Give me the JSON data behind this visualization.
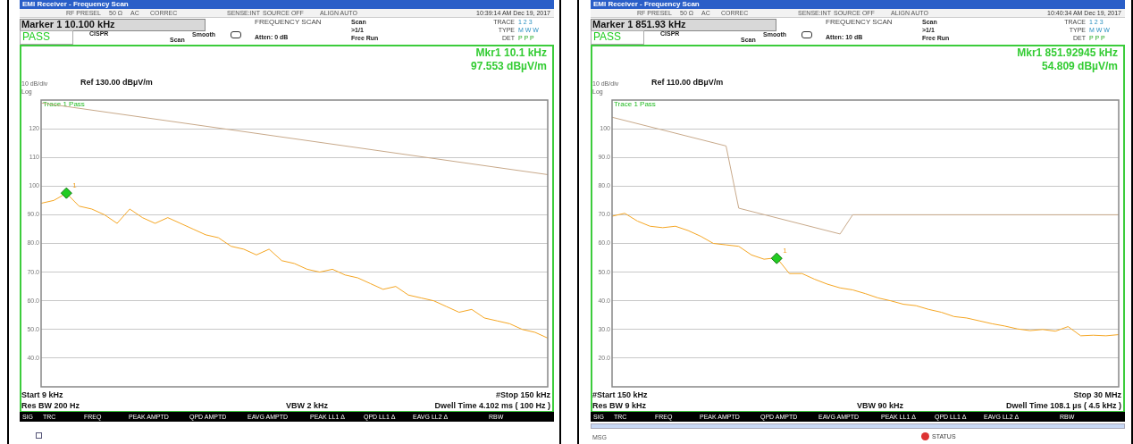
{
  "chart_data": [
    {
      "type": "line",
      "grid": "y",
      "tick_labels": "y",
      "marker": "none",
      "categories": [
        null,
        null,
        null,
        null,
        null,
        null,
        null,
        null,
        null,
        null,
        null,
        null,
        null,
        null,
        null,
        null,
        null,
        null,
        null,
        null,
        null,
        null,
        null,
        null,
        null,
        null,
        null,
        null,
        null,
        null,
        null,
        null,
        null,
        null,
        null,
        null,
        null,
        null,
        null,
        null,
        null
      ],
      "ylim": [
        30,
        130
      ],
      "yticks": [
        {
          "value": 40,
          "label": "40.0"
        },
        {
          "value": 50,
          "label": "50.0"
        },
        {
          "value": 60,
          "label": "60.0"
        },
        {
          "value": 70,
          "label": "70.0"
        },
        {
          "value": 80,
          "label": "80.0"
        },
        {
          "value": 90,
          "label": "90.0"
        },
        100,
        110,
        120
      ],
      "series": [
        {
          "type": "line",
          "color": "#c8a98a",
          "values": [
            129,
            null,
            null,
            null,
            null,
            null,
            null,
            null,
            null,
            null,
            null,
            null,
            null,
            null,
            null,
            null,
            null,
            null,
            null,
            null,
            null,
            null,
            null,
            null,
            null,
            null,
            null,
            null,
            null,
            null,
            null,
            null,
            null,
            null,
            null,
            null,
            null,
            null,
            null,
            null,
            104
          ]
        },
        {
          "type": "line",
          "color": "#f5a623",
          "values": [
            94,
            95,
            97.5,
            93,
            92,
            90,
            87,
            92,
            89,
            87,
            89,
            87,
            85,
            83,
            82,
            79,
            78,
            76,
            78,
            74,
            73,
            71,
            70,
            71,
            69,
            68,
            66,
            64,
            65,
            62,
            61,
            60,
            58,
            56,
            57,
            54,
            53,
            52,
            50,
            49,
            47
          ]
        },
        {
          "type": "scatter",
          "marker": "diamond",
          "color": "#22cc22",
          "values": [
            null,
            null,
            97.553,
            null,
            null,
            null,
            null,
            null,
            null,
            null,
            null,
            null,
            null,
            null,
            null,
            null,
            null,
            null,
            null,
            null,
            null,
            null,
            null,
            null,
            null,
            null,
            null,
            null,
            null,
            null,
            null,
            null,
            null,
            null,
            null,
            null,
            null,
            null,
            null,
            null,
            null
          ]
        }
      ],
      "annotations": [
        "EMI Receiver - Frequency Scan",
        "RF PRESEL",
        "50 Ω",
        "AC",
        "CORREC",
        "SENSE:INT",
        "SOURCE OFF",
        "ALIGN AUTO",
        "10:39:14 AM Dec 19, 2017",
        "Marker 1 10.100 kHz",
        "PASS",
        "CISPR",
        "Scan",
        "Smooth",
        "FREQUENCY SCAN",
        "Atten: 0 dB",
        "Scan",
        ">1/1",
        "Free Run",
        "TRACE",
        "TYPE",
        "DET",
        "Mkr1  10.1 kHz",
        "97.553 dBµV/m",
        "10 dB/div",
        "Ref 130.00 dBµV/m",
        "Log",
        "Trace 1 Pass",
        "Start 9 kHz",
        "#Stop 150 kHz",
        "Res BW 200 Hz",
        "VBW 2 kHz",
        "Dwell Time 4.102 ms ( 100 Hz )",
        "SIG",
        "TRC",
        "FREQ",
        "PEAK AMPTD",
        "QPD AMPTD",
        "EAVG AMPTD",
        "PEAK LL1 Δ",
        "QPD LL1 Δ",
        "EAVG LL2 Δ",
        "RBW",
        "1 2 3",
        "M W W",
        "P P P",
        {
          "text": "1",
          "y": 97.553
        }
      ]
    },
    {
      "type": "line",
      "grid": "y",
      "tick_labels": "y",
      "marker": "none",
      "categories": [
        null,
        null,
        null,
        null,
        null,
        null,
        null,
        null,
        null,
        null,
        null,
        null,
        null,
        null,
        null,
        null,
        null,
        null,
        null,
        null,
        null,
        null,
        null,
        null,
        null,
        null,
        null,
        null,
        null,
        null,
        null,
        null,
        null,
        null,
        null,
        null,
        null,
        null,
        null,
        null,
        null
      ],
      "ylim": [
        10,
        110
      ],
      "yticks": [
        {
          "value": 20,
          "label": "20.0"
        },
        {
          "value": 30,
          "label": "30.0"
        },
        {
          "value": 40,
          "label": "40.0"
        },
        {
          "value": 50,
          "label": "50.0"
        },
        {
          "value": 60,
          "label": "60.0"
        },
        {
          "value": 70,
          "label": "70.0"
        },
        {
          "value": 80,
          "label": "80.0"
        },
        {
          "value": 90,
          "label": "90.0"
        },
        100
      ],
      "series": [
        {
          "type": "line",
          "color": "#c8a98a",
          "values": [
            104,
            null,
            null,
            null,
            null,
            null,
            null,
            null,
            null,
            94,
            72.3,
            null,
            null,
            null,
            null,
            null,
            null,
            null,
            63.3,
            70,
            null,
            null,
            null,
            null,
            null,
            null,
            null,
            null,
            null,
            null,
            null,
            null,
            null,
            null,
            null,
            null,
            null,
            null,
            null,
            null,
            70
          ]
        },
        {
          "type": "line",
          "color": "#f5a623",
          "values": [
            69.5,
            70.5,
            67.8,
            66,
            65.5,
            66,
            64.5,
            62.5,
            60,
            59.5,
            59,
            56,
            54.5,
            55,
            49.5,
            49.5,
            47.5,
            45.8,
            44.5,
            43.8,
            42.5,
            41,
            40,
            38.8,
            38.3,
            37,
            36,
            34.5,
            34,
            33,
            32,
            31.2,
            30.2,
            29.6,
            30,
            29.4,
            31,
            27.8,
            28,
            27.8,
            28.2
          ]
        },
        {
          "type": "scatter",
          "marker": "diamond",
          "color": "#22cc22",
          "values": [
            null,
            null,
            null,
            null,
            null,
            null,
            null,
            null,
            null,
            null,
            null,
            null,
            null,
            54.809,
            null,
            null,
            null,
            null,
            null,
            null,
            null,
            null,
            null,
            null,
            null,
            null,
            null,
            null,
            null,
            null,
            null,
            null,
            null,
            null,
            null,
            null,
            null,
            null,
            null,
            null,
            null
          ]
        }
      ],
      "annotations": [
        "EMI Receiver - Frequency Scan",
        "RF PRESEL",
        "50 Ω",
        "AC",
        "CORREC",
        "SENSE:INT",
        "SOURCE OFF",
        "ALIGN AUTO",
        "10:40:34 AM Dec 19, 2017",
        "Marker 1 851.93 kHz",
        "PASS",
        "CISPR",
        "Scan",
        "Smooth",
        "FREQUENCY SCAN",
        "Atten: 10 dB",
        "Scan",
        ">1/1",
        "Free Run",
        "TRACE",
        "TYPE",
        "DET",
        "Mkr1  851.92945 kHz",
        "54.809 dBµV/m",
        "10 dB/div",
        "Ref 110.00 dBµV/m",
        "Log",
        "Trace 1 Pass",
        "#Start 150 kHz",
        "Stop 30 MHz",
        "Res BW 9 kHz",
        "VBW 90 kHz",
        "Dwell Time 108.1 µs ( 4.5 kHz )",
        "SIG",
        "TRC",
        "FREQ",
        "PEAK AMPTD",
        "QPD AMPTD",
        "EAVG AMPTD",
        "PEAK LL1 Δ",
        "QPD LL1 Δ",
        "EAVG LL2 Δ",
        "RBW",
        "1 2 3",
        "M W W",
        "P P P",
        "MSG",
        "STATUS",
        {
          "text": "1",
          "y": 54.809
        }
      ]
    }
  ]
}
